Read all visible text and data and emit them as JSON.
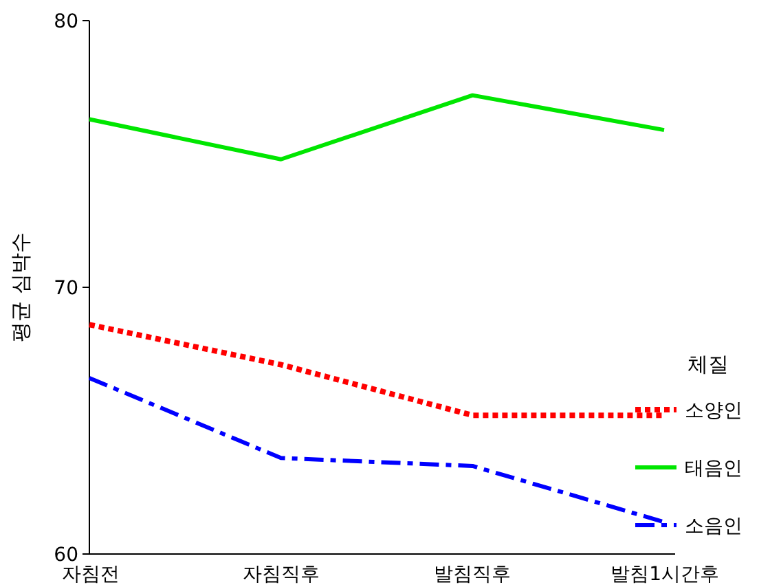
{
  "chart_data": {
    "type": "line",
    "ylabel": "평균 심박수",
    "legend_title": "체질",
    "legend": "right",
    "grid": false,
    "ylim": [
      60,
      80
    ],
    "yticks": [
      60,
      70,
      80
    ],
    "categories": [
      "자침전",
      "자침직후",
      "발침직후",
      "발침1시간후"
    ],
    "series": [
      {
        "name": "소양인",
        "color": "#ff0000",
        "line_style": "dotted",
        "values": [
          68.6,
          67.1,
          65.2,
          65.2
        ]
      },
      {
        "name": "태음인",
        "color": "#00e600",
        "line_style": "solid",
        "values": [
          76.3,
          74.8,
          77.2,
          75.9
        ]
      },
      {
        "name": "소음인",
        "color": "#0000ff",
        "line_style": "dashed",
        "values": [
          66.6,
          63.6,
          63.3,
          61.2
        ]
      }
    ]
  }
}
